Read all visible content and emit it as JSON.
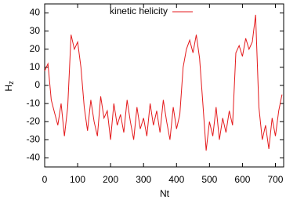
{
  "chart_data": {
    "type": "line",
    "xlabel": "Nt",
    "ylabel": "H",
    "ylabel_sub": "z",
    "xlim": [
      0,
      725
    ],
    "ylim": [
      -45,
      45
    ],
    "xticks": [
      0,
      100,
      200,
      300,
      400,
      500,
      600,
      700
    ],
    "yticks": [
      -40,
      -30,
      -20,
      -10,
      0,
      10,
      20,
      30,
      40
    ],
    "legend": "top",
    "x": [
      0,
      10,
      20,
      30,
      40,
      50,
      60,
      70,
      80,
      90,
      100,
      110,
      120,
      130,
      140,
      150,
      160,
      170,
      180,
      190,
      200,
      210,
      220,
      230,
      240,
      250,
      260,
      270,
      280,
      290,
      300,
      310,
      320,
      330,
      340,
      350,
      360,
      370,
      380,
      390,
      400,
      410,
      420,
      430,
      440,
      450,
      460,
      470,
      480,
      490,
      500,
      510,
      520,
      530,
      540,
      550,
      560,
      570,
      580,
      590,
      600,
      610,
      620,
      630,
      640,
      650,
      660,
      670,
      680,
      690,
      700,
      710,
      720
    ],
    "series": [
      {
        "name": "kinetic helicity",
        "color": "#e41a1c",
        "values": [
          8,
          12,
          -8,
          -15,
          -22,
          -10,
          -28,
          -12,
          28,
          20,
          24,
          10,
          -12,
          -25,
          -8,
          -20,
          -28,
          -6,
          -18,
          -14,
          -30,
          -10,
          -22,
          -16,
          -26,
          -8,
          -20,
          -30,
          -12,
          -24,
          -18,
          -28,
          -10,
          -22,
          -14,
          -26,
          -8,
          -20,
          -30,
          -12,
          -24,
          -16,
          10,
          20,
          25,
          18,
          28,
          15,
          -10,
          -36,
          -20,
          -28,
          -12,
          -30,
          -18,
          -26,
          -14,
          -22,
          18,
          22,
          16,
          26,
          20,
          24,
          39,
          -12,
          -30,
          -22,
          -35,
          -18,
          -28,
          -14,
          -5
        ]
      }
    ]
  }
}
